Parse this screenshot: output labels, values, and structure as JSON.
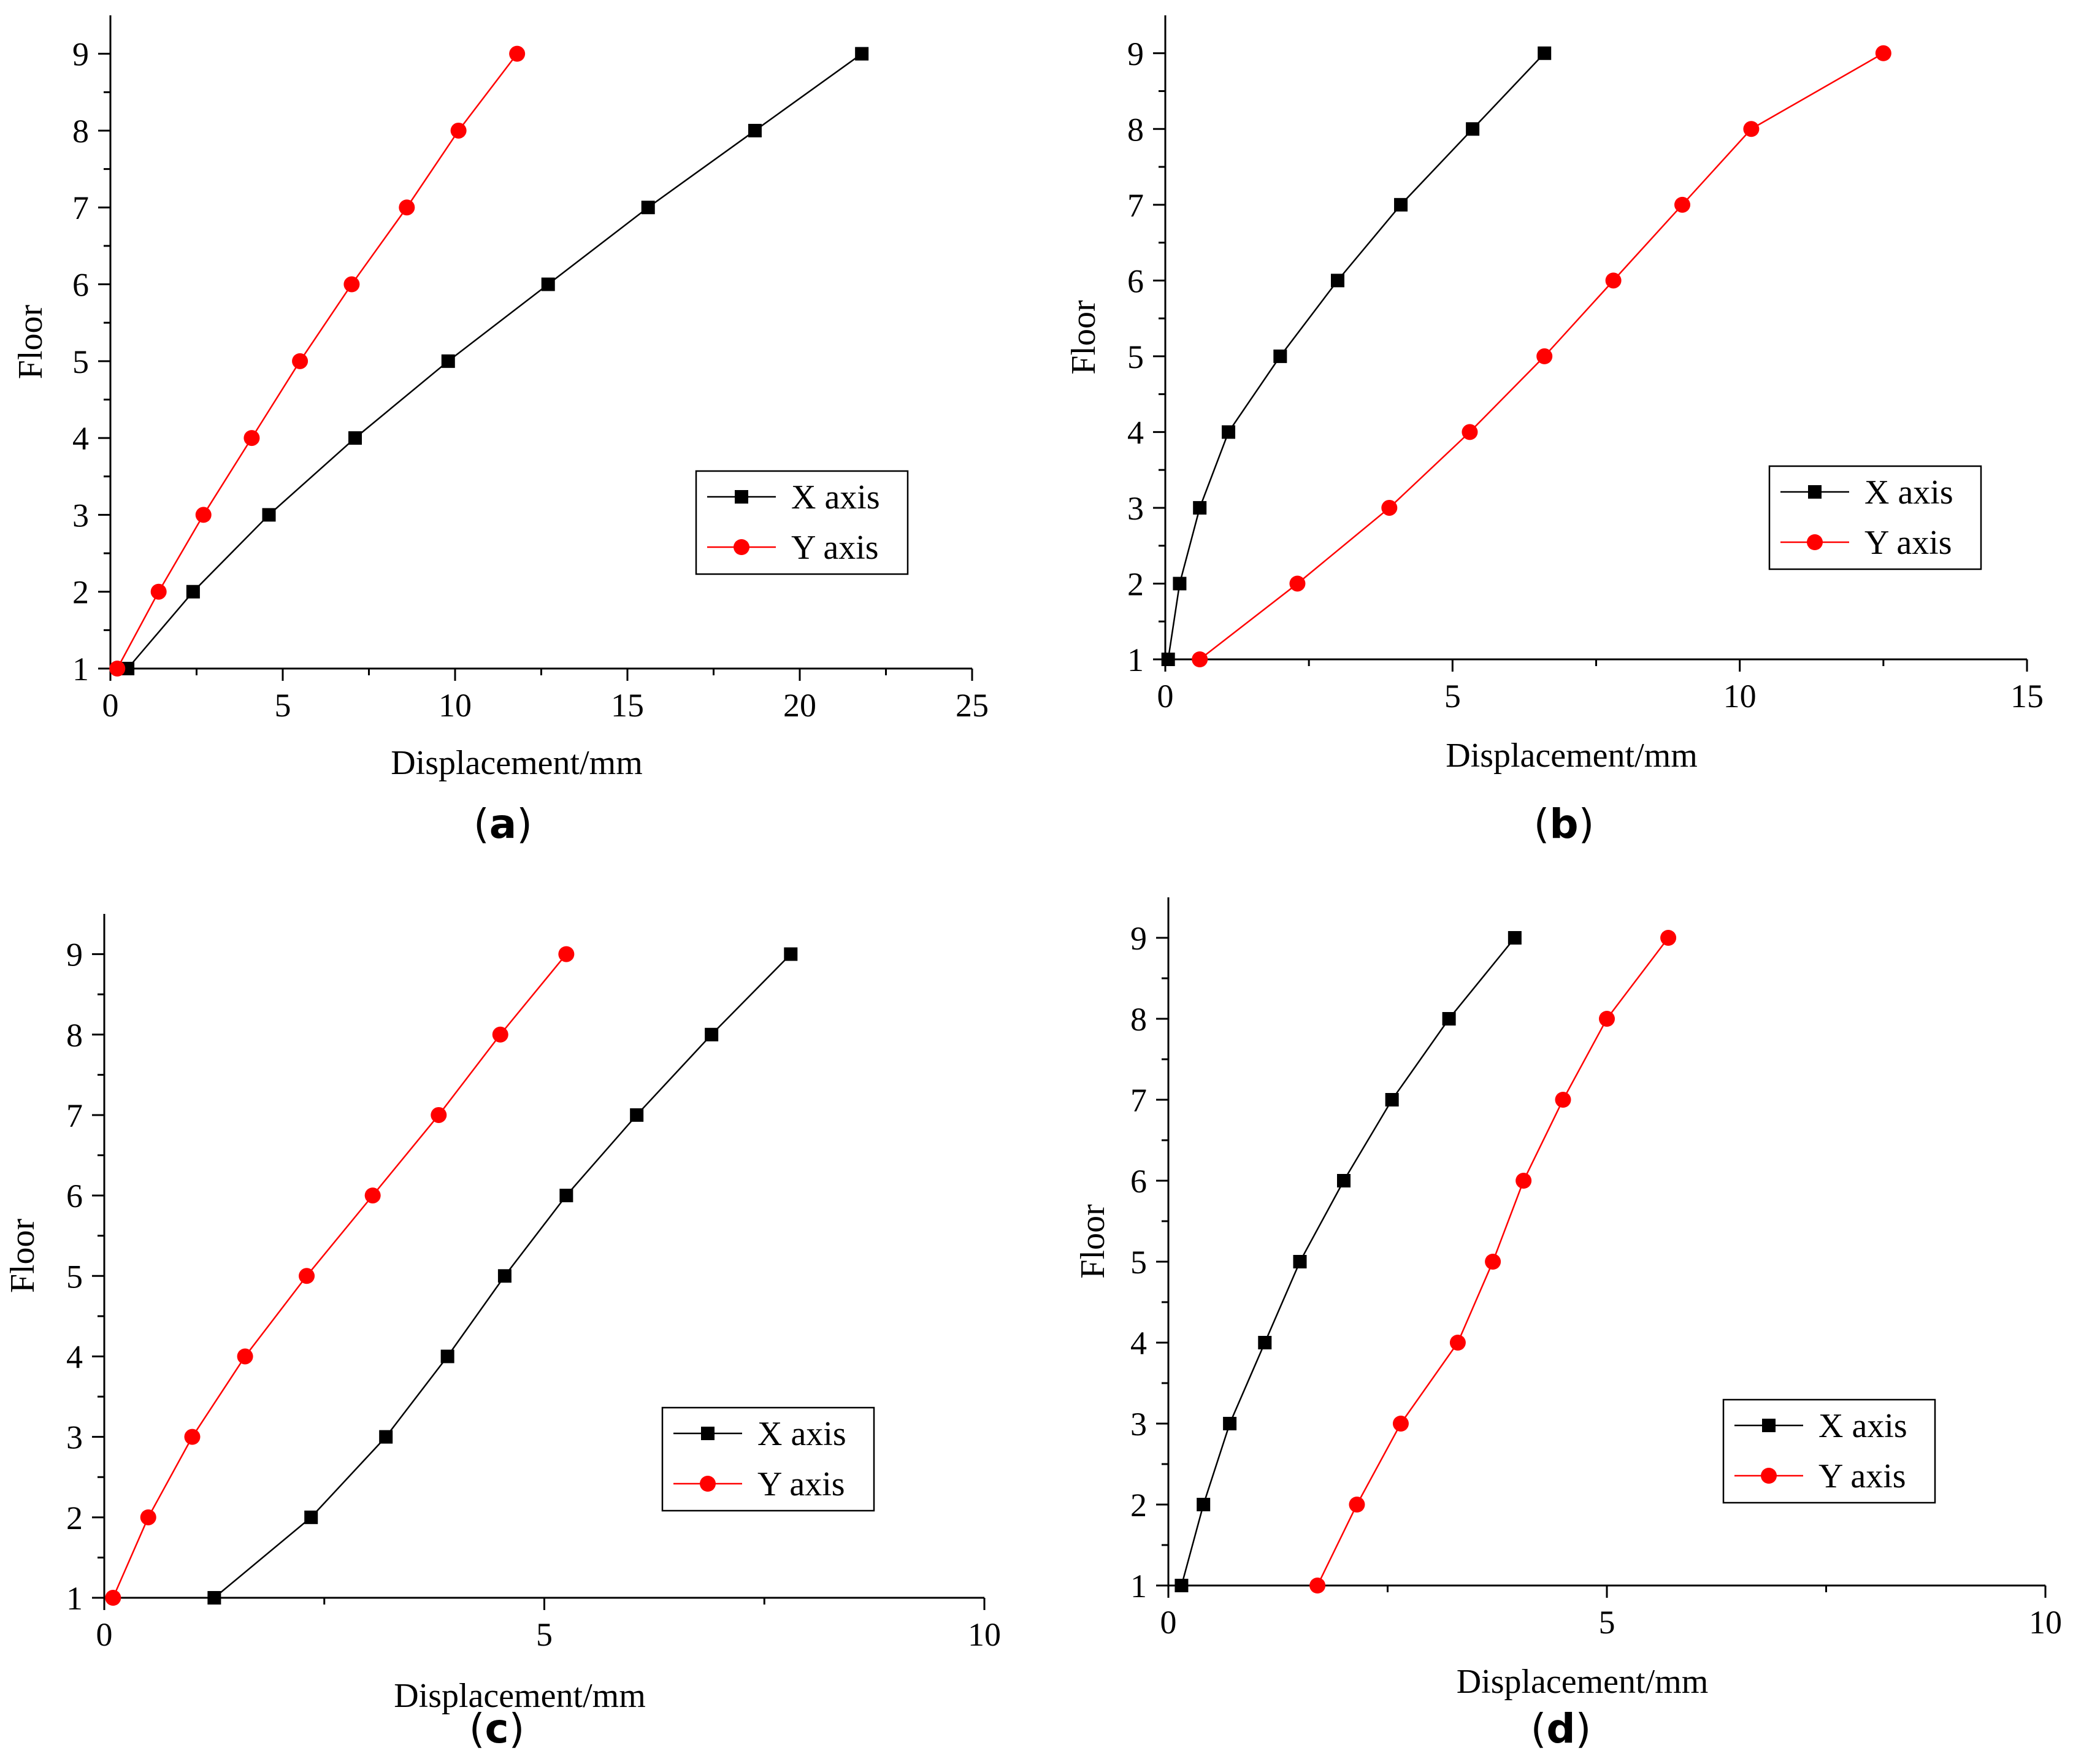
{
  "chart_data": [
    {
      "type": "line",
      "panel_label": "a",
      "xlabel": "Displacement/mm",
      "ylabel": "Floor",
      "xlim": [
        0,
        25
      ],
      "ylim": [
        1,
        9.5
      ],
      "xticks": [
        0,
        5,
        10,
        15,
        20,
        25
      ],
      "yticks": [
        1,
        2,
        3,
        4,
        5,
        6,
        7,
        8,
        9
      ],
      "legend_position": "bottom-right",
      "series": [
        {
          "name": "X axis",
          "color": "#000000",
          "marker": "square",
          "x": [
            0.5,
            2.4,
            4.6,
            7.1,
            9.8,
            12.7,
            15.6,
            18.7,
            21.8
          ],
          "y": [
            1,
            2,
            3,
            4,
            5,
            6,
            7,
            8,
            9
          ]
        },
        {
          "name": "Y axis",
          "color": "#ff0000",
          "marker": "circle",
          "x": [
            0.2,
            1.4,
            2.7,
            4.1,
            5.5,
            7.0,
            8.6,
            10.1,
            11.8
          ],
          "y": [
            1,
            2,
            3,
            4,
            5,
            6,
            7,
            8,
            9
          ]
        }
      ]
    },
    {
      "type": "line",
      "panel_label": "b",
      "xlabel": "Displacement/mm",
      "ylabel": "Floor",
      "xlim": [
        0,
        15
      ],
      "ylim": [
        1,
        9.5
      ],
      "xticks": [
        0,
        5,
        10,
        15
      ],
      "yticks": [
        1,
        2,
        3,
        4,
        5,
        6,
        7,
        8,
        9
      ],
      "legend_position": "bottom-right",
      "series": [
        {
          "name": "X axis",
          "color": "#000000",
          "marker": "square",
          "x": [
            0.05,
            0.25,
            0.6,
            1.1,
            2.0,
            3.0,
            4.1,
            5.35,
            6.6
          ],
          "y": [
            1,
            2,
            3,
            4,
            5,
            6,
            7,
            8,
            9
          ]
        },
        {
          "name": "Y axis",
          "color": "#ff0000",
          "marker": "circle",
          "x": [
            0.6,
            2.3,
            3.9,
            5.3,
            6.6,
            7.8,
            9.0,
            10.2,
            12.5
          ],
          "y": [
            1,
            2,
            3,
            4,
            5,
            6,
            7,
            8,
            9
          ]
        }
      ]
    },
    {
      "type": "line",
      "panel_label": "c",
      "xlabel": "Displacement/mm",
      "ylabel": "Floor",
      "xlim": [
        0,
        10
      ],
      "ylim": [
        1,
        9.5
      ],
      "xticks": [
        0,
        5,
        10
      ],
      "yticks": [
        1,
        2,
        3,
        4,
        5,
        6,
        7,
        8,
        9
      ],
      "legend_position": "bottom-right",
      "series": [
        {
          "name": "X axis",
          "color": "#000000",
          "marker": "square",
          "x": [
            1.25,
            2.35,
            3.2,
            3.9,
            4.55,
            5.25,
            6.05,
            6.9,
            7.8
          ],
          "y": [
            1,
            2,
            3,
            4,
            5,
            6,
            7,
            8,
            9
          ]
        },
        {
          "name": "Y axis",
          "color": "#ff0000",
          "marker": "circle",
          "x": [
            0.1,
            0.5,
            1.0,
            1.6,
            2.3,
            3.05,
            3.8,
            4.5,
            5.25
          ],
          "y": [
            1,
            2,
            3,
            4,
            5,
            6,
            7,
            8,
            9
          ]
        }
      ]
    },
    {
      "type": "line",
      "panel_label": "d",
      "xlabel": "Displacement/mm",
      "ylabel": "Floor",
      "xlim": [
        0,
        10
      ],
      "ylim": [
        1,
        9.5
      ],
      "xticks": [
        0,
        5,
        10
      ],
      "yticks": [
        1,
        2,
        3,
        4,
        5,
        6,
        7,
        8,
        9
      ],
      "legend_position": "bottom-right",
      "series": [
        {
          "name": "X axis",
          "color": "#000000",
          "marker": "square",
          "x": [
            0.15,
            0.4,
            0.7,
            1.1,
            1.5,
            2.0,
            2.55,
            3.2,
            3.95
          ],
          "y": [
            1,
            2,
            3,
            4,
            5,
            6,
            7,
            8,
            9
          ]
        },
        {
          "name": "Y axis",
          "color": "#ff0000",
          "marker": "circle",
          "x": [
            1.7,
            2.15,
            2.65,
            3.3,
            3.7,
            4.05,
            4.5,
            5.0,
            5.7
          ],
          "y": [
            1,
            2,
            3,
            4,
            5,
            6,
            7,
            8,
            9
          ]
        }
      ]
    }
  ]
}
